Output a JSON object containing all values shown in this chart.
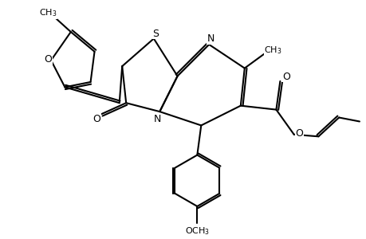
{
  "bg_color": "#ffffff",
  "line_color": "#000000",
  "line_width": 1.5,
  "font_size": 9,
  "figsize": [
    4.6,
    3.0
  ],
  "dpi": 100,
  "xlim": [
    0,
    9
  ],
  "ylim": [
    0,
    6
  ]
}
